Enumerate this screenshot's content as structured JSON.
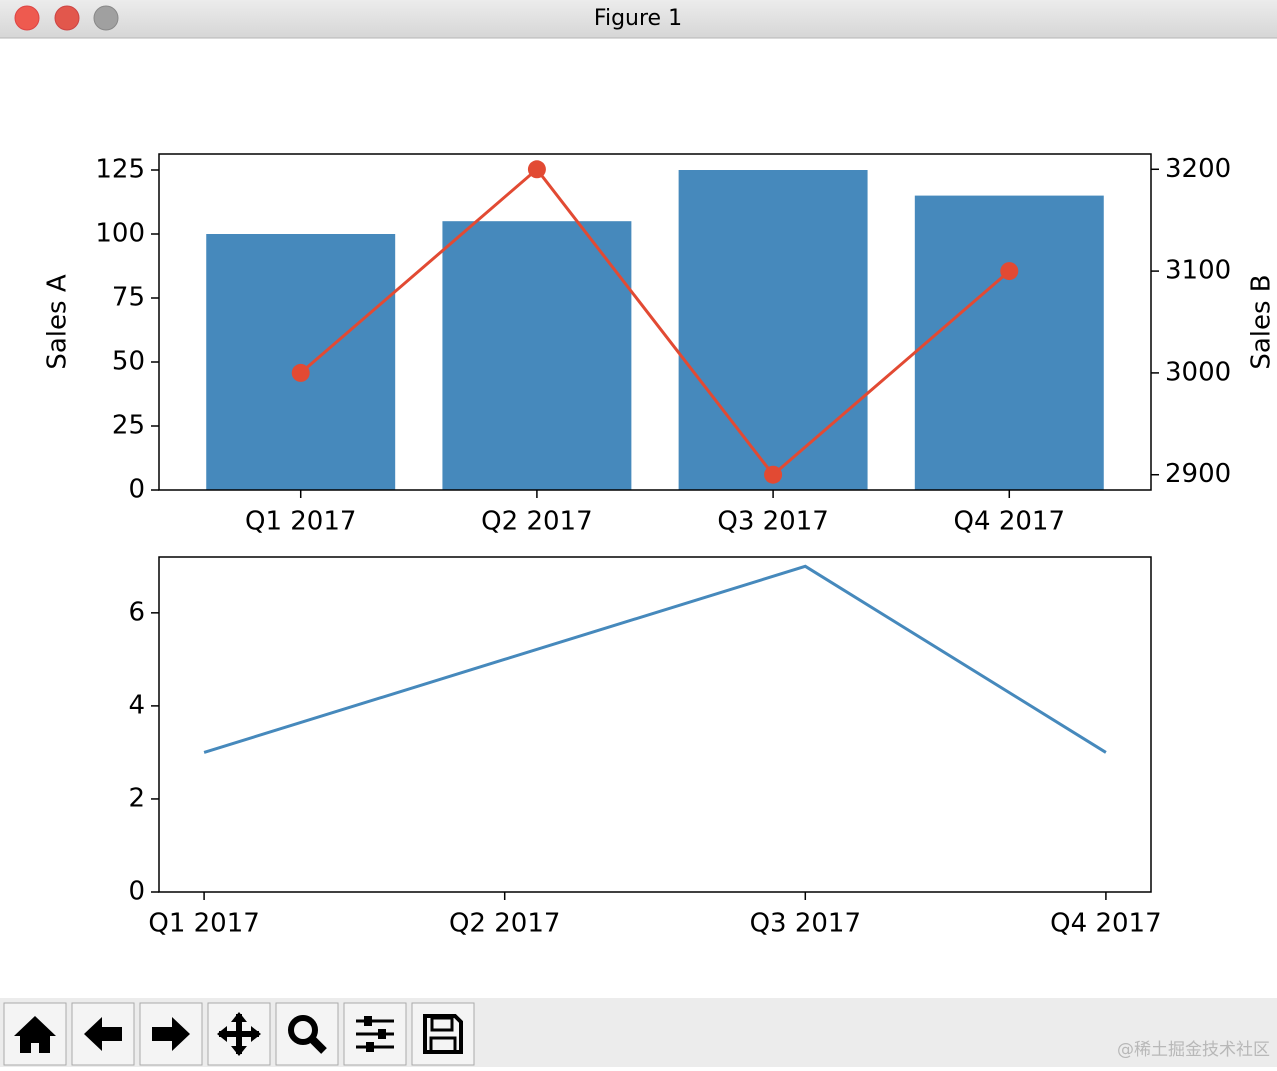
{
  "window": {
    "title": "Figure 1"
  },
  "watermark": "@稀土掘金技术社区",
  "chart_data": [
    {
      "type": "bar",
      "categories": [
        "Q1 2017",
        "Q2 2017",
        "Q3 2017",
        "Q4 2017"
      ],
      "ylabel": "Sales A",
      "y2label": "Sales B",
      "series": [
        {
          "type": "bar",
          "color": "#4689bc",
          "values": [
            100,
            105,
            125,
            115
          ]
        },
        {
          "type": "line",
          "axis": "y2",
          "color": "#e24a33",
          "marker": "o",
          "values": [
            3000,
            3200,
            2900,
            3100
          ]
        }
      ],
      "ylim": [
        0,
        131.25
      ],
      "yticks": [
        0,
        25,
        50,
        75,
        100,
        125
      ],
      "y2lim": [
        2885,
        3215
      ],
      "y2ticks": [
        2900,
        3000,
        3100,
        3200
      ]
    },
    {
      "type": "line",
      "categories": [
        "Q1 2017",
        "Q2 2017",
        "Q3 2017",
        "Q4 2017"
      ],
      "values": [
        3,
        5,
        7,
        3
      ],
      "color": "#4689bc",
      "ylim": [
        0,
        7.2
      ],
      "yticks": [
        0,
        2,
        4,
        6
      ]
    }
  ]
}
